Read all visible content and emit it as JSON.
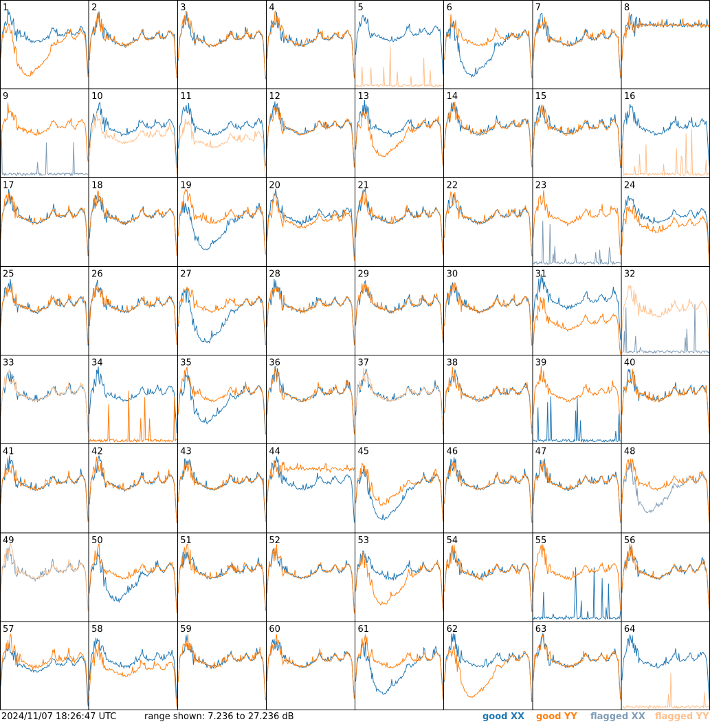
{
  "chart_data": {
    "type": "line",
    "panel_count": 64,
    "grid": "8x8",
    "panel_labels": [
      "1",
      "2",
      "3",
      "4",
      "5",
      "6",
      "7",
      "8",
      "9",
      "10",
      "11",
      "12",
      "13",
      "14",
      "15",
      "16",
      "17",
      "18",
      "19",
      "20",
      "21",
      "22",
      "23",
      "24",
      "25",
      "26",
      "27",
      "28",
      "29",
      "30",
      "31",
      "32",
      "33",
      "34",
      "35",
      "36",
      "37",
      "38",
      "39",
      "40",
      "41",
      "42",
      "43",
      "44",
      "45",
      "46",
      "47",
      "48",
      "49",
      "50",
      "51",
      "52",
      "53",
      "54",
      "55",
      "56",
      "57",
      "58",
      "59",
      "60",
      "61",
      "62",
      "63",
      "64"
    ],
    "ylim": [
      7.236,
      27.236
    ],
    "y_unit": "dB",
    "x_range": [
      0,
      1
    ],
    "series_styles": [
      {
        "name": "good XX",
        "color": "#1f77b4"
      },
      {
        "name": "good YY",
        "color": "#ff7f0e"
      },
      {
        "name": "flagged XX",
        "color": "#7f9bb5"
      },
      {
        "name": "flagged YY",
        "color": "#ffbf8a"
      }
    ],
    "panels": [
      {
        "xx": "good",
        "yy": "good",
        "xo": 0.8,
        "yo": -6,
        "xs": "spike",
        "ys": "dip"
      },
      {
        "xx": "good",
        "yy": "good",
        "xo": 0,
        "yo": 0,
        "xs": "normal",
        "ys": "normal"
      },
      {
        "xx": "good",
        "yy": "good",
        "xo": 0,
        "yo": 0,
        "xs": "normal",
        "ys": "normal"
      },
      {
        "xx": "good",
        "yy": "good",
        "xo": 0,
        "yo": 0,
        "xs": "normal",
        "ys": "normal"
      },
      {
        "xx": "good",
        "yy": "flagged",
        "xo": 1,
        "yo": 0,
        "xs": "bump",
        "ys": "flat"
      },
      {
        "xx": "good",
        "yy": "good",
        "xo": -6,
        "yo": 0,
        "xs": "dip",
        "ys": "normal"
      },
      {
        "xx": "good",
        "yy": "good",
        "xo": 0,
        "yo": 0,
        "xs": "normal",
        "ys": "normal"
      },
      {
        "xx": "good",
        "yy": "good",
        "xo": 0,
        "yo": 0,
        "xs": "flattop",
        "ys": "flattop"
      },
      {
        "xx": "flagged",
        "yy": "good",
        "xo": 0,
        "yo": 0,
        "xs": "flat",
        "ys": "normal"
      },
      {
        "xx": "good",
        "yy": "flagged",
        "xo": 0,
        "yo": -2,
        "xs": "normal",
        "ys": "normal"
      },
      {
        "xx": "good",
        "yy": "flagged",
        "xo": 0,
        "yo": -3,
        "xs": "normal",
        "ys": "normal"
      },
      {
        "xx": "good",
        "yy": "good",
        "xo": 0,
        "yo": 0,
        "xs": "normal",
        "ys": "normal"
      },
      {
        "xx": "good",
        "yy": "good",
        "xo": 0,
        "yo": -4,
        "xs": "normal",
        "ys": "dip"
      },
      {
        "xx": "good",
        "yy": "good",
        "xo": 0,
        "yo": 0,
        "xs": "normal",
        "ys": "normal"
      },
      {
        "xx": "good",
        "yy": "good",
        "xo": 0,
        "yo": 0,
        "xs": "normal",
        "ys": "normal"
      },
      {
        "xx": "good",
        "yy": "flagged",
        "xo": 0,
        "yo": 0,
        "xs": "bump",
        "ys": "flat"
      },
      {
        "xx": "good",
        "yy": "good",
        "xo": 0,
        "yo": 0,
        "xs": "normal",
        "ys": "normal"
      },
      {
        "xx": "good",
        "yy": "good",
        "xo": 0,
        "yo": 0,
        "xs": "normal",
        "ys": "normal"
      },
      {
        "xx": "good",
        "yy": "good",
        "xo": -5,
        "yo": 0,
        "xs": "dip",
        "ys": "normal"
      },
      {
        "xx": "good",
        "yy": "good",
        "xo": 0,
        "yo": -1,
        "xs": "normal",
        "ys": "normal"
      },
      {
        "xx": "good",
        "yy": "good",
        "xo": 0,
        "yo": 0,
        "xs": "normal",
        "ys": "normal"
      },
      {
        "xx": "good",
        "yy": "good",
        "xo": 0,
        "yo": 0,
        "xs": "normal",
        "ys": "normal"
      },
      {
        "xx": "flagged",
        "yy": "good",
        "xo": 0,
        "yo": 0,
        "xs": "flat",
        "ys": "normal"
      },
      {
        "xx": "good",
        "yy": "good",
        "xo": 0,
        "yo": -2,
        "xs": "normal",
        "ys": "normal"
      },
      {
        "xx": "good",
        "yy": "good",
        "xo": 0,
        "yo": 0,
        "xs": "normal",
        "ys": "normal"
      },
      {
        "xx": "good",
        "yy": "good",
        "xo": 0,
        "yo": 0,
        "xs": "normal",
        "ys": "normal"
      },
      {
        "xx": "good",
        "yy": "good",
        "xo": -6,
        "yo": 0,
        "xs": "dip",
        "ys": "normal"
      },
      {
        "xx": "good",
        "yy": "good",
        "xo": 0,
        "yo": 0,
        "xs": "normal",
        "ys": "normal"
      },
      {
        "xx": "good",
        "yy": "good",
        "xo": 0,
        "yo": 0,
        "xs": "normal",
        "ys": "normal"
      },
      {
        "xx": "good",
        "yy": "good",
        "xo": 0,
        "yo": 0,
        "xs": "normal",
        "ys": "normal"
      },
      {
        "xx": "good",
        "yy": "good",
        "xo": 1,
        "yo": -4,
        "xs": "normal",
        "ys": "normal"
      },
      {
        "xx": "flagged",
        "yy": "flagged",
        "xo": 0,
        "yo": -1,
        "xs": "flat",
        "ys": "normal"
      },
      {
        "xx": "good",
        "yy": "flagged",
        "xo": 0,
        "yo": 0,
        "xs": "normal",
        "ys": "normal"
      },
      {
        "xx": "good",
        "yy": "good",
        "xo": 0,
        "yo": 0,
        "xs": "bump",
        "ys": "flat"
      },
      {
        "xx": "good",
        "yy": "good",
        "xo": -4,
        "yo": 0,
        "xs": "dip",
        "ys": "normal"
      },
      {
        "xx": "good",
        "yy": "good",
        "xo": 0,
        "yo": 0,
        "xs": "normal",
        "ys": "normal"
      },
      {
        "xx": "good",
        "yy": "flagged",
        "xo": 0,
        "yo": 0,
        "xs": "normal",
        "ys": "normal"
      },
      {
        "xx": "good",
        "yy": "good",
        "xo": 0,
        "yo": 0,
        "xs": "normal",
        "ys": "normal"
      },
      {
        "xx": "good",
        "yy": "good",
        "xo": 0,
        "yo": 0,
        "xs": "flat",
        "ys": "normal"
      },
      {
        "xx": "good",
        "yy": "good",
        "xo": 0,
        "yo": 0,
        "xs": "normal",
        "ys": "normal"
      },
      {
        "xx": "good",
        "yy": "good",
        "xo": 0,
        "yo": 0,
        "xs": "normal",
        "ys": "normal"
      },
      {
        "xx": "good",
        "yy": "good",
        "xo": 0,
        "yo": 0,
        "xs": "normal",
        "ys": "normal"
      },
      {
        "xx": "good",
        "yy": "good",
        "xo": 0,
        "yo": 0,
        "xs": "normal",
        "ys": "normal"
      },
      {
        "xx": "good",
        "yy": "good",
        "xo": 0,
        "yo": -2,
        "xs": "normal",
        "ys": "flattop"
      },
      {
        "xx": "good",
        "yy": "good",
        "xo": -6,
        "yo": -2,
        "xs": "dip",
        "ys": "dip"
      },
      {
        "xx": "good",
        "yy": "good",
        "xo": 0,
        "yo": 0,
        "xs": "normal",
        "ys": "normal"
      },
      {
        "xx": "good",
        "yy": "good",
        "xo": 0,
        "yo": 0,
        "xs": "normal",
        "ys": "normal"
      },
      {
        "xx": "flagged",
        "yy": "good",
        "xo": -4,
        "yo": 0,
        "xs": "dip",
        "ys": "normal"
      },
      {
        "xx": "flagged",
        "yy": "flagged",
        "xo": 0,
        "yo": 0,
        "xs": "normal",
        "ys": "normal"
      },
      {
        "xx": "good",
        "yy": "good",
        "xo": -4,
        "yo": 0,
        "xs": "dip",
        "ys": "normal"
      },
      {
        "xx": "good",
        "yy": "good",
        "xo": 0,
        "yo": 0,
        "xs": "normal",
        "ys": "normal"
      },
      {
        "xx": "good",
        "yy": "good",
        "xo": 0,
        "yo": 0,
        "xs": "normal",
        "ys": "normal"
      },
      {
        "xx": "good",
        "yy": "good",
        "xo": 0,
        "yo": -5,
        "xs": "normal",
        "ys": "dip"
      },
      {
        "xx": "good",
        "yy": "good",
        "xo": 0,
        "yo": 0,
        "xs": "normal",
        "ys": "normal"
      },
      {
        "xx": "good",
        "yy": "good",
        "xo": 0,
        "yo": 0,
        "xs": "flat",
        "ys": "normal"
      },
      {
        "xx": "good",
        "yy": "good",
        "xo": 0,
        "yo": 0,
        "xs": "normal",
        "ys": "normal"
      },
      {
        "xx": "good",
        "yy": "good",
        "xo": -1,
        "yo": 0,
        "xs": "normal",
        "ys": "normal"
      },
      {
        "xx": "good",
        "yy": "good",
        "xo": 0,
        "yo": -2,
        "xs": "normal",
        "ys": "normal"
      },
      {
        "xx": "good",
        "yy": "good",
        "xo": 0,
        "yo": 0,
        "xs": "normal",
        "ys": "normal"
      },
      {
        "xx": "good",
        "yy": "good",
        "xo": 0,
        "yo": 0,
        "xs": "normal",
        "ys": "normal"
      },
      {
        "xx": "good",
        "yy": "good",
        "xo": -5,
        "yo": 0,
        "xs": "dip",
        "ys": "normal"
      },
      {
        "xx": "good",
        "yy": "good",
        "xo": 0,
        "yo": -6,
        "xs": "normal",
        "ys": "dip"
      },
      {
        "xx": "good",
        "yy": "good",
        "xo": 0,
        "yo": 0,
        "xs": "normal",
        "ys": "normal"
      },
      {
        "xx": "good",
        "yy": "flagged",
        "xo": 0,
        "yo": 0,
        "xs": "bump",
        "ys": "flat"
      }
    ]
  },
  "footer": {
    "timestamp": "2024/11/07 18:26:47 UTC",
    "range_text": "range shown: 7.236 to 27.236 dB",
    "legend": [
      {
        "label": "good XX",
        "color": "#1f77b4"
      },
      {
        "label": "good YY",
        "color": "#ff7f0e"
      },
      {
        "label": "flagged XX",
        "color": "#7f9bb5"
      },
      {
        "label": "flagged YY",
        "color": "#ffbf8a"
      }
    ]
  }
}
